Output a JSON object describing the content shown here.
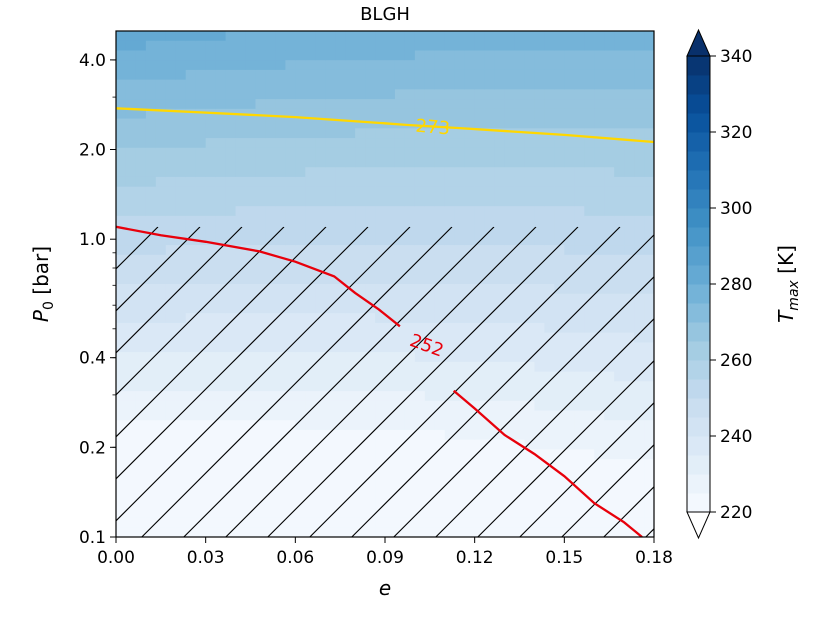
{
  "chart_data": {
    "type": "heatmap",
    "title": "BLGH",
    "xlabel": "e",
    "ylabel": "P0 [bar]",
    "ylabel_main": "P",
    "ylabel_sub": "0",
    "ylabel_tail": " [bar]",
    "xlim": [
      0,
      0.18
    ],
    "ylim": [
      0.1,
      5.0
    ],
    "yscale": "log",
    "x_ticks": [
      0,
      0.03,
      0.06,
      0.09,
      0.12,
      0.15,
      0.18
    ],
    "x_tick_labels": [
      "0.00",
      "0.03",
      "0.06",
      "0.09",
      "0.12",
      "0.15",
      "0.18"
    ],
    "y_ticks": [
      0.1,
      0.2,
      0.4,
      1.0,
      2.0,
      4.0
    ],
    "y_tick_labels": [
      "0.1",
      "0.2",
      "0.4",
      "1.0",
      "2.0",
      "4.0"
    ],
    "colorbar": {
      "label": "Tmax [K]",
      "label_main": "T",
      "label_sub": "max",
      "label_tail": " [K]",
      "range": [
        220,
        340
      ],
      "ticks": [
        220,
        240,
        260,
        280,
        300,
        320,
        340
      ],
      "tick_labels": [
        "220",
        "240",
        "260",
        "280",
        "300",
        "320",
        "340"
      ],
      "levels": 24,
      "extend": "both",
      "colormap": "Blues"
    },
    "contours": [
      {
        "level": 273,
        "label": "273",
        "color": "#FFD700",
        "points": [
          [
            0.0,
            2.75
          ],
          [
            0.03,
            2.66
          ],
          [
            0.06,
            2.57
          ],
          [
            0.09,
            2.45
          ],
          [
            0.097,
            2.42
          ],
          [
            0.115,
            2.36
          ],
          [
            0.15,
            2.24
          ],
          [
            0.18,
            2.12
          ]
        ],
        "label_at": [
          0.106,
          2.38
        ]
      },
      {
        "level": 252,
        "label": "252",
        "color": "#E8000B",
        "points": [
          [
            0.0,
            1.1
          ],
          [
            0.015,
            1.03
          ],
          [
            0.03,
            0.98
          ],
          [
            0.048,
            0.91
          ],
          [
            0.06,
            0.84
          ],
          [
            0.073,
            0.75
          ],
          [
            0.08,
            0.66
          ],
          [
            0.088,
            0.58
          ],
          [
            0.095,
            0.51
          ]
        ],
        "points_2": [
          [
            0.113,
            0.31
          ],
          [
            0.12,
            0.27
          ],
          [
            0.13,
            0.22
          ],
          [
            0.14,
            0.19
          ],
          [
            0.15,
            0.16
          ],
          [
            0.16,
            0.13
          ],
          [
            0.17,
            0.112
          ],
          [
            0.176,
            0.1
          ]
        ],
        "label_at": [
          0.104,
          0.44
        ]
      }
    ],
    "hatch_region": {
      "x": [
        0.0,
        0.18
      ],
      "y": [
        0.1,
        1.1
      ],
      "pattern": "diagonal"
    },
    "grid": false
  }
}
